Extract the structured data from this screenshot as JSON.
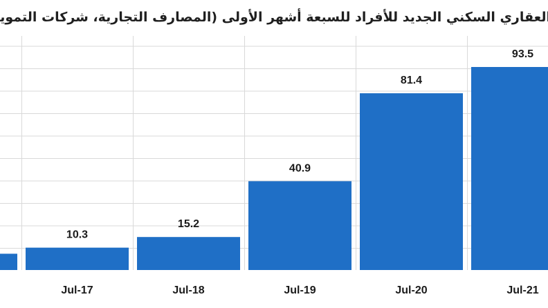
{
  "chart_data": {
    "type": "bar",
    "title": "العقاري السكني الجديد للأفراد للسبعة أشهر الأولى (المصارف التجارية، شركات التمويل",
    "categories": [
      "",
      "Jul-17",
      "Jul-18",
      "Jul-19",
      "Jul-20",
      "Jul-21"
    ],
    "values": [
      null,
      10.3,
      15.2,
      40.9,
      81.4,
      93.5
    ],
    "value_labels": [
      "",
      "10.3",
      "15.2",
      "40.9",
      "81.4",
      "93.5"
    ],
    "bar_color": "#1f6fc6",
    "grid": true,
    "grid_color": "#d9d9d9",
    "ylim": [
      0,
      100
    ]
  }
}
